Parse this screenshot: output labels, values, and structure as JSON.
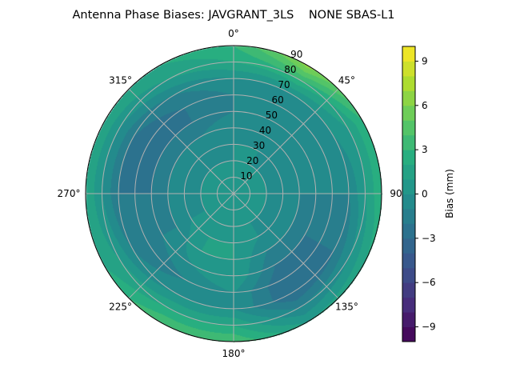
{
  "chart_data": {
    "type": "heatmap",
    "subtype": "polar-filled-contour",
    "title": "Antenna Phase Biases: JAVGRANT_3LS    NONE SBAS-L1",
    "colorbar_label": "Bias (mm)",
    "colormap": "viridis",
    "color_range": [
      -10,
      10
    ],
    "contour_level_step": 1,
    "colorbar_ticks": [
      "−9",
      "−6",
      "−3",
      "0",
      "3",
      "6",
      "9"
    ],
    "colorbar_tick_values": [
      -9,
      -6,
      -3,
      0,
      3,
      6,
      9
    ],
    "angular_ticks": [
      "0°",
      "45°",
      "90°",
      "135°",
      "180°",
      "225°",
      "270°",
      "315°"
    ],
    "angular_tick_values": [
      0,
      45,
      90,
      135,
      180,
      225,
      270,
      315
    ],
    "radial_ticks": [
      "10",
      "20",
      "30",
      "40",
      "50",
      "60",
      "70",
      "80",
      "90"
    ],
    "radial_tick_values": [
      10,
      20,
      30,
      40,
      50,
      60,
      70,
      80,
      90
    ],
    "radial_range": [
      0,
      90
    ],
    "theta_zero": "top",
    "theta_direction": "clockwise",
    "grid": true,
    "azimuth_deg": [
      0,
      30,
      60,
      90,
      120,
      150,
      180,
      210,
      240,
      270,
      300,
      330
    ],
    "zenith_deg": [
      0,
      10,
      20,
      30,
      40,
      50,
      60,
      70,
      80,
      90
    ],
    "bias_mm": [
      [
        0,
        0,
        0,
        0,
        0,
        -1,
        -1,
        0,
        2,
        3
      ],
      [
        0,
        0,
        0,
        0,
        -1,
        -1,
        -1,
        0,
        3,
        6.5
      ],
      [
        0,
        0,
        0,
        -1,
        -1,
        -1,
        -1,
        0,
        1,
        3
      ],
      [
        0,
        0,
        0,
        -1,
        -1,
        -1,
        -1,
        -1,
        1,
        3
      ],
      [
        0,
        0,
        0,
        -1,
        -1,
        -2,
        -2,
        -2,
        0,
        2
      ],
      [
        0,
        0,
        0,
        0,
        -1,
        -2,
        -3,
        -3,
        -1,
        1
      ],
      [
        0,
        0,
        0,
        1,
        1,
        1,
        0,
        0,
        2,
        4
      ],
      [
        0,
        0,
        0,
        1,
        1,
        0,
        -1,
        0,
        2,
        4
      ],
      [
        0,
        0,
        0,
        0,
        -1,
        -1,
        -2,
        -1,
        1,
        2
      ],
      [
        0,
        0,
        0,
        -1,
        -1,
        -2,
        -2,
        -2,
        0,
        2
      ],
      [
        0,
        0,
        0,
        -1,
        -1,
        -2,
        -3,
        -2,
        0,
        2
      ],
      [
        0,
        0,
        0,
        -1,
        -1,
        -2,
        -2,
        -1,
        1,
        2
      ]
    ]
  }
}
